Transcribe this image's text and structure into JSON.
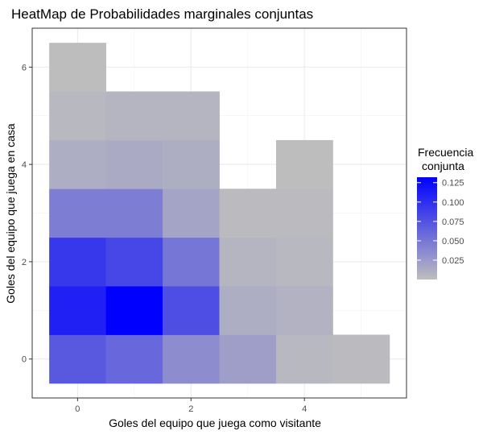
{
  "chart_data": {
    "type": "heatmap",
    "title": "HeatMap de Probabilidades marginales conjuntas",
    "xlabel": "Goles del equipo que juega como visitante",
    "ylabel": "Goles del equipo que juega en casa",
    "xlim": [
      -0.8,
      5.8
    ],
    "ylim": [
      -0.8,
      6.8
    ],
    "xticks": [
      0,
      2,
      4
    ],
    "yticks": [
      0,
      2,
      4,
      6
    ],
    "grid": true,
    "legend": {
      "title_line1": "Frecuencia",
      "title_line2": "conjunta",
      "ticks": [
        0.025,
        0.05,
        0.075,
        0.1,
        0.125
      ],
      "tick_labels": [
        "0.025",
        "0.050",
        "0.075",
        "0.100",
        "0.125"
      ],
      "min": 0.0,
      "max": 0.132,
      "low_color": "#bebebe",
      "high_color": "#0000ff",
      "placement": "right"
    },
    "cells": [
      {
        "x": 0,
        "y": 0,
        "value": 0.07
      },
      {
        "x": 1,
        "y": 0,
        "value": 0.06
      },
      {
        "x": 2,
        "y": 0,
        "value": 0.035
      },
      {
        "x": 3,
        "y": 0,
        "value": 0.022
      },
      {
        "x": 4,
        "y": 0,
        "value": 0.004
      },
      {
        "x": 5,
        "y": 0,
        "value": 0.002
      },
      {
        "x": 0,
        "y": 1,
        "value": 0.11
      },
      {
        "x": 1,
        "y": 1,
        "value": 0.132
      },
      {
        "x": 2,
        "y": 1,
        "value": 0.078
      },
      {
        "x": 3,
        "y": 1,
        "value": 0.012
      },
      {
        "x": 4,
        "y": 1,
        "value": 0.008
      },
      {
        "x": 0,
        "y": 2,
        "value": 0.094
      },
      {
        "x": 1,
        "y": 2,
        "value": 0.083
      },
      {
        "x": 2,
        "y": 2,
        "value": 0.05
      },
      {
        "x": 3,
        "y": 2,
        "value": 0.006
      },
      {
        "x": 4,
        "y": 2,
        "value": 0.004
      },
      {
        "x": 0,
        "y": 3,
        "value": 0.045
      },
      {
        "x": 1,
        "y": 3,
        "value": 0.045
      },
      {
        "x": 2,
        "y": 3,
        "value": 0.018
      },
      {
        "x": 3,
        "y": 3,
        "value": 0.003
      },
      {
        "x": 4,
        "y": 3,
        "value": 0.003
      },
      {
        "x": 0,
        "y": 4,
        "value": 0.012
      },
      {
        "x": 1,
        "y": 4,
        "value": 0.014
      },
      {
        "x": 2,
        "y": 4,
        "value": 0.011
      },
      {
        "x": 4,
        "y": 4,
        "value": 0.001
      },
      {
        "x": 0,
        "y": 5,
        "value": 0.004
      },
      {
        "x": 1,
        "y": 5,
        "value": 0.006
      },
      {
        "x": 2,
        "y": 5,
        "value": 0.006
      },
      {
        "x": 0,
        "y": 6,
        "value": 0.001
      }
    ]
  }
}
